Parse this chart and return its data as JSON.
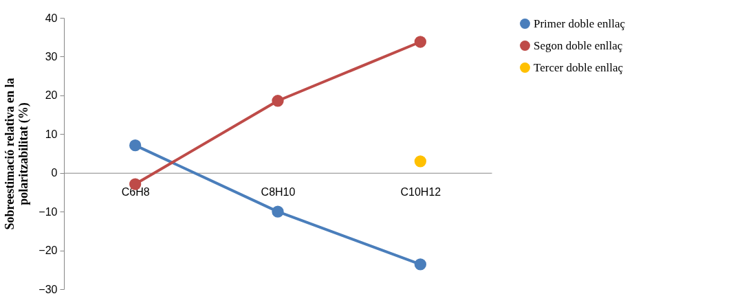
{
  "chart_data": {
    "type": "line",
    "ylabel": "Sobreestimació relativa en la\npolaritzabilitat (%)",
    "categories": [
      "C6H8",
      "C8H10",
      "C10H12"
    ],
    "series": [
      {
        "name": "Primer doble enllaç",
        "color": "#4a7ebb",
        "values": [
          7.1,
          -10.0,
          -23.6
        ]
      },
      {
        "name": "Segon doble enllaç",
        "color": "#be4b48",
        "values": [
          -2.9,
          18.6,
          33.8
        ]
      },
      {
        "name": "Tercer doble enllaç",
        "color": "#ffc000",
        "values": [
          null,
          null,
          3.0
        ]
      }
    ],
    "ylim": [
      -30,
      40
    ],
    "yticks": [
      -30,
      -20,
      -10,
      0,
      10,
      20,
      30,
      40
    ],
    "grid": false,
    "legend": "right",
    "marker": "circle",
    "line_style": "solid"
  }
}
